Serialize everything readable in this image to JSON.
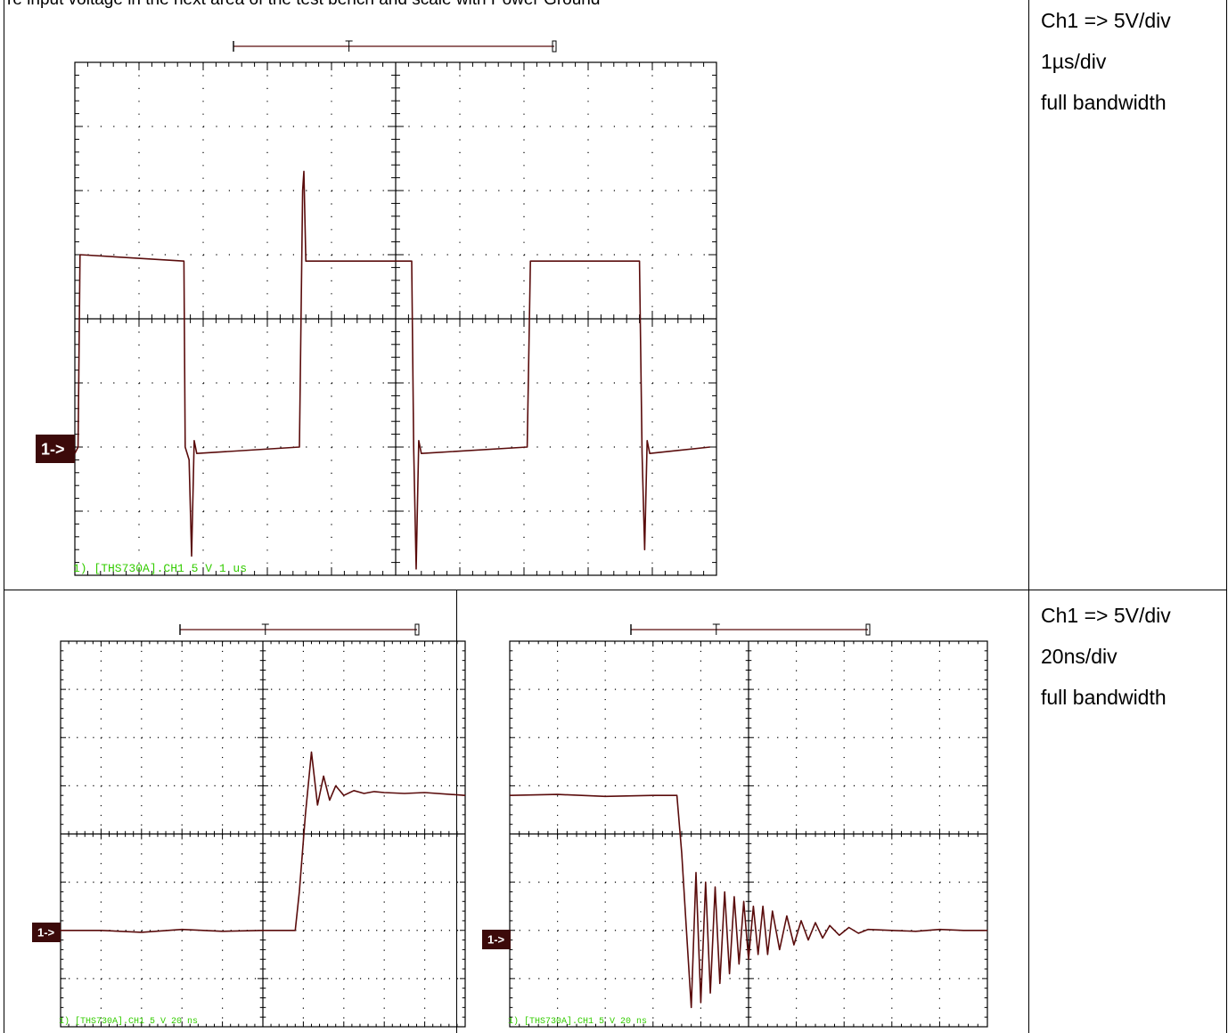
{
  "header_text": "re input voltage in the next area of the test bench and scale with Power Ground",
  "rows": [
    {
      "notes": [
        "Ch1 => 5V/div",
        "1µs/div",
        "full bandwidth"
      ],
      "scopes": [
        {
          "name": "scope-1us",
          "status_label": "1) [THS730A].CH1 5  V   1 us",
          "channel_marker": "1->",
          "trigger_marker": "T",
          "trace_color": "#5a0c0c",
          "grid_color": "#000000",
          "divisions": {
            "x": 10,
            "y": 8
          },
          "chart_data": {
            "type": "line",
            "x_unit": "µs",
            "y_unit": "V",
            "xlim": [
              0,
              10
            ],
            "ylim": [
              -20,
              20
            ],
            "x": [
              0.0,
              0.05,
              0.08,
              1.7,
              1.72,
              1.78,
              1.82,
              1.86,
              1.9,
              3.5,
              3.55,
              3.57,
              3.6,
              5.25,
              5.28,
              5.32,
              5.36,
              5.4,
              7.05,
              7.1,
              7.5,
              8.8,
              8.84,
              8.88,
              8.92,
              8.96,
              9.9
            ],
            "y": [
              -10.5,
              -10.0,
              5.0,
              4.5,
              -10.0,
              -11.0,
              -18.5,
              -9.5,
              -10.5,
              -10.0,
              10.0,
              11.5,
              4.5,
              4.5,
              -10.0,
              -19.5,
              -9.5,
              -10.5,
              -10.0,
              4.5,
              4.5,
              4.5,
              -10.5,
              -18.0,
              -9.5,
              -10.5,
              -10.0
            ]
          }
        }
      ]
    },
    {
      "notes": [
        "Ch1 => 5V/div",
        "20ns/div",
        "full bandwidth"
      ],
      "scopes": [
        {
          "name": "scope-rising-edge",
          "status_label": "1) [THS730A].CH1 5  V   20 ns",
          "channel_marker": "1->",
          "trigger_marker": "T",
          "trace_color": "#5a0c0c",
          "grid_color": "#000000",
          "divisions": {
            "x": 10,
            "y": 8
          },
          "chart_data": {
            "type": "line",
            "x_unit": "ns",
            "y_unit": "V",
            "xlim": [
              0,
              200
            ],
            "ylim": [
              -20,
              20
            ],
            "x": [
              0,
              20,
              40,
              60,
              80,
              100,
              116,
              118,
              121,
              124,
              127,
              130,
              133,
              136,
              140,
              145,
              150,
              155,
              160,
              170,
              180,
              200
            ],
            "y": [
              -10.0,
              -10.0,
              -10.2,
              -9.9,
              -10.1,
              -10.0,
              -10.0,
              -6.0,
              2.0,
              8.5,
              3.0,
              6.0,
              3.5,
              5.0,
              4.0,
              4.5,
              4.2,
              4.4,
              4.3,
              4.2,
              4.3,
              4.0
            ]
          }
        },
        {
          "name": "scope-falling-edge",
          "status_label": "1) [THS730A].CH1 5  V   20 ns",
          "channel_marker": "1->",
          "trigger_marker": "T",
          "trace_color": "#5a0c0c",
          "grid_color": "#000000",
          "divisions": {
            "x": 10,
            "y": 8
          },
          "chart_data": {
            "type": "line",
            "x_unit": "ns",
            "y_unit": "V",
            "xlim": [
              0,
              200
            ],
            "ylim": [
              -20,
              20
            ],
            "x": [
              0,
              20,
              40,
              60,
              70,
              72,
              74,
              76,
              78,
              80,
              82,
              84,
              86,
              88,
              90,
              92,
              94,
              96,
              98,
              100,
              102,
              104,
              106,
              108,
              110,
              113,
              116,
              119,
              122,
              125,
              128,
              131,
              134,
              138,
              142,
              146,
              150,
              160,
              170,
              180,
              190,
              200
            ],
            "y": [
              4.0,
              4.1,
              3.9,
              4.0,
              4.0,
              -2.0,
              -10.0,
              -18.0,
              -4.0,
              -17.5,
              -5.0,
              -16.5,
              -5.5,
              -15.5,
              -6.0,
              -14.5,
              -6.5,
              -13.5,
              -7.0,
              -13.0,
              -7.5,
              -12.5,
              -7.5,
              -12.5,
              -8.0,
              -12.0,
              -8.5,
              -11.5,
              -9.0,
              -11.0,
              -9.2,
              -10.8,
              -9.5,
              -10.5,
              -9.7,
              -10.3,
              -9.9,
              -10.0,
              -10.1,
              -9.9,
              -10.0,
              -10.0
            ]
          }
        }
      ]
    }
  ]
}
